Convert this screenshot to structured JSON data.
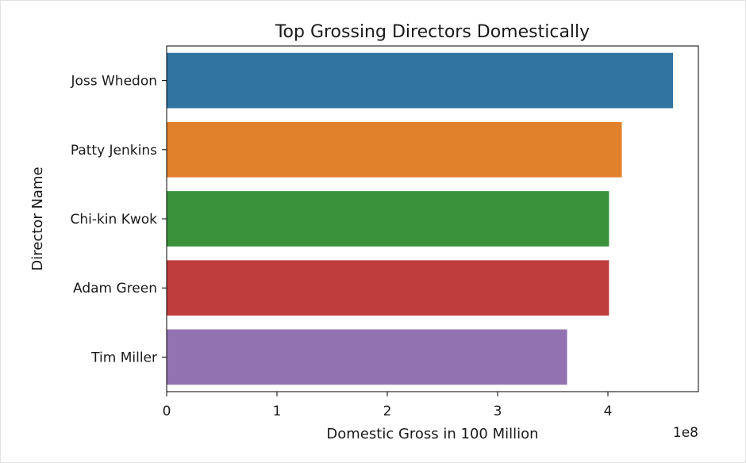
{
  "chart_data": {
    "type": "bar",
    "orientation": "horizontal",
    "title": "Top Grossing Directors Domestically",
    "xlabel": "Domestic Gross in 100 Million",
    "ylabel": "Director Name",
    "offset_text": "1e8",
    "categories": [
      "Joss Whedon",
      "Patty Jenkins",
      "Chi-kin Kwok",
      "Adam Green",
      "Tim Miller"
    ],
    "values": [
      459000000,
      412600000,
      401000000,
      401000000,
      363000000
    ],
    "colors": [
      "#3274a1",
      "#e1812c",
      "#3a923a",
      "#c03d3e",
      "#9372b2"
    ],
    "xlim": [
      0,
      482000000
    ],
    "xticks": [
      0,
      100000000,
      200000000,
      300000000,
      400000000
    ],
    "xtick_labels": [
      "0",
      "1",
      "2",
      "3",
      "4"
    ],
    "grid": false,
    "legend": "none"
  }
}
